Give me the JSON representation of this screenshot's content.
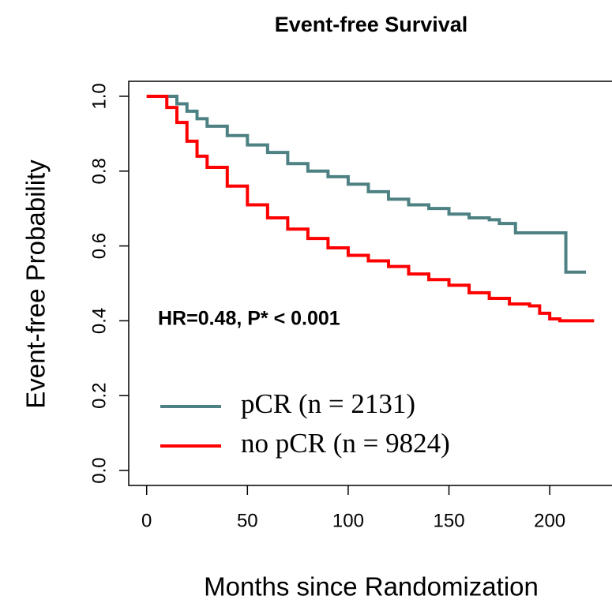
{
  "chart_data": {
    "type": "step",
    "title": "Event-free Survival",
    "x_label": "Months since Randomization",
    "y_label": "Event-free Probability",
    "annotation": "HR=0.48,  P* < 0.001",
    "xlim": [
      -8.9,
      230.9
    ],
    "ylim": [
      -0.04,
      1.04
    ],
    "xticks": [
      0,
      50,
      100,
      150,
      200
    ],
    "yticks": [
      {
        "value": 0,
        "label": "0.0"
      },
      0.2,
      0.4,
      0.6,
      0.8,
      {
        "value": 1,
        "label": "1.0"
      }
    ],
    "legend": "bottom-left",
    "series": [
      {
        "name": "pCR (n = 2131)",
        "color": "#4e8183",
        "x": [
          0,
          8,
          15,
          20,
          25,
          30,
          40,
          50,
          60,
          70,
          80,
          90,
          100,
          110,
          120,
          130,
          140,
          150,
          160,
          170,
          175,
          183,
          200,
          208,
          218
        ],
        "values": [
          1.0,
          1.0,
          0.98,
          0.96,
          0.94,
          0.92,
          0.895,
          0.87,
          0.85,
          0.82,
          0.8,
          0.785,
          0.765,
          0.745,
          0.725,
          0.71,
          0.7,
          0.685,
          0.675,
          0.67,
          0.66,
          0.635,
          0.635,
          0.53,
          0.53
        ]
      },
      {
        "name": "no pCR (n = 9824)",
        "color": "#ff0000",
        "x": [
          0,
          5,
          10,
          15,
          20,
          25,
          30,
          40,
          50,
          60,
          70,
          80,
          90,
          100,
          110,
          120,
          130,
          140,
          150,
          160,
          170,
          180,
          190,
          195,
          200,
          205,
          222
        ],
        "values": [
          1.0,
          1.0,
          0.97,
          0.93,
          0.88,
          0.84,
          0.81,
          0.76,
          0.71,
          0.675,
          0.645,
          0.62,
          0.595,
          0.575,
          0.56,
          0.545,
          0.525,
          0.51,
          0.495,
          0.475,
          0.46,
          0.445,
          0.44,
          0.42,
          0.405,
          0.4,
          0.4
        ]
      }
    ]
  }
}
